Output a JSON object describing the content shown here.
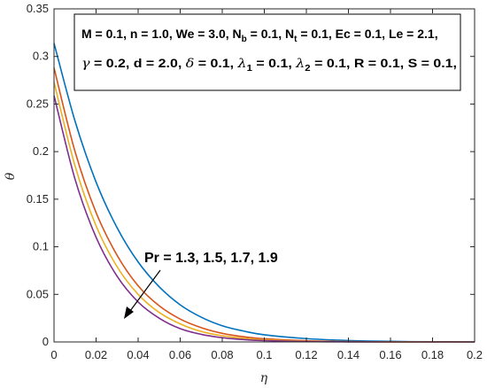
{
  "chart_data": {
    "type": "line",
    "title": "",
    "xlabel": "η",
    "ylabel": "θ",
    "xlim": [
      0,
      0.2
    ],
    "ylim": [
      0,
      0.35
    ],
    "grid": false,
    "legend": "none",
    "x_ticks": [
      "0",
      "0.02",
      "0.04",
      "0.06",
      "0.08",
      "0.1",
      "0.12",
      "0.14",
      "0.16",
      "0.18",
      "0.2"
    ],
    "y_ticks": [
      "0",
      "0.05",
      "0.1",
      "0.15",
      "0.2",
      "0.25",
      "0.3",
      "0.35"
    ],
    "x": [
      0,
      0.01,
      0.02,
      0.03,
      0.04,
      0.05,
      0.06,
      0.07,
      0.08,
      0.09,
      0.1,
      0.12,
      0.14,
      0.16,
      0.18,
      0.2
    ],
    "series": [
      {
        "color": "#0072BD",
        "values": [
          0.314,
          0.232,
          0.168,
          0.12,
          0.084,
          0.058,
          0.039,
          0.026,
          0.017,
          0.0115,
          0.0075,
          0.0035,
          0.0015,
          0.0006,
          0.0002,
          0.0001
        ]
      },
      {
        "color": "#D95319",
        "values": [
          0.288,
          0.2,
          0.136,
          0.091,
          0.059,
          0.038,
          0.024,
          0.015,
          0.009,
          0.0055,
          0.0033,
          0.0012,
          0.0004,
          0.0001,
          0.0,
          0.0
        ]
      },
      {
        "color": "#EDB120",
        "values": [
          0.273,
          0.185,
          0.122,
          0.079,
          0.05,
          0.031,
          0.019,
          0.011,
          0.0065,
          0.0038,
          0.0022,
          0.0007,
          0.0002,
          0.0001,
          0.0,
          0.0
        ]
      },
      {
        "color": "#7E2F8E",
        "values": [
          0.259,
          0.171,
          0.11,
          0.069,
          0.042,
          0.025,
          0.014,
          0.008,
          0.0045,
          0.0025,
          0.0014,
          0.0004,
          0.0001,
          0.0,
          0.0,
          0.0
        ]
      }
    ],
    "parameters_box": {
      "line1": {
        "a": "M = 0.1, n = 1.0,  We = 3.0, N",
        "a_sub": "b",
        "b": " = 0.1, N",
        "b_sub": "t",
        "c": " = 0.1, Ec = 0.1, Le = 2.1,"
      },
      "line2": {
        "gamma_sym": "γ",
        "a": " = 0.2, d = 2.0, ",
        "delta_sym": "δ",
        "b": " = 0.1, ",
        "lambda1_sym": "λ",
        "lambda1_sub": "1",
        "c": " = 0.1, ",
        "lambda2_sym": "λ",
        "lambda2_sub": "2",
        "d": " = 0.1, R = 0.1, S = 0.1,"
      }
    },
    "annotation": {
      "text": "Pr  = 1.3, 1.5, 1.7, 1.9",
      "arrow": "points toward increasing Pr"
    }
  }
}
